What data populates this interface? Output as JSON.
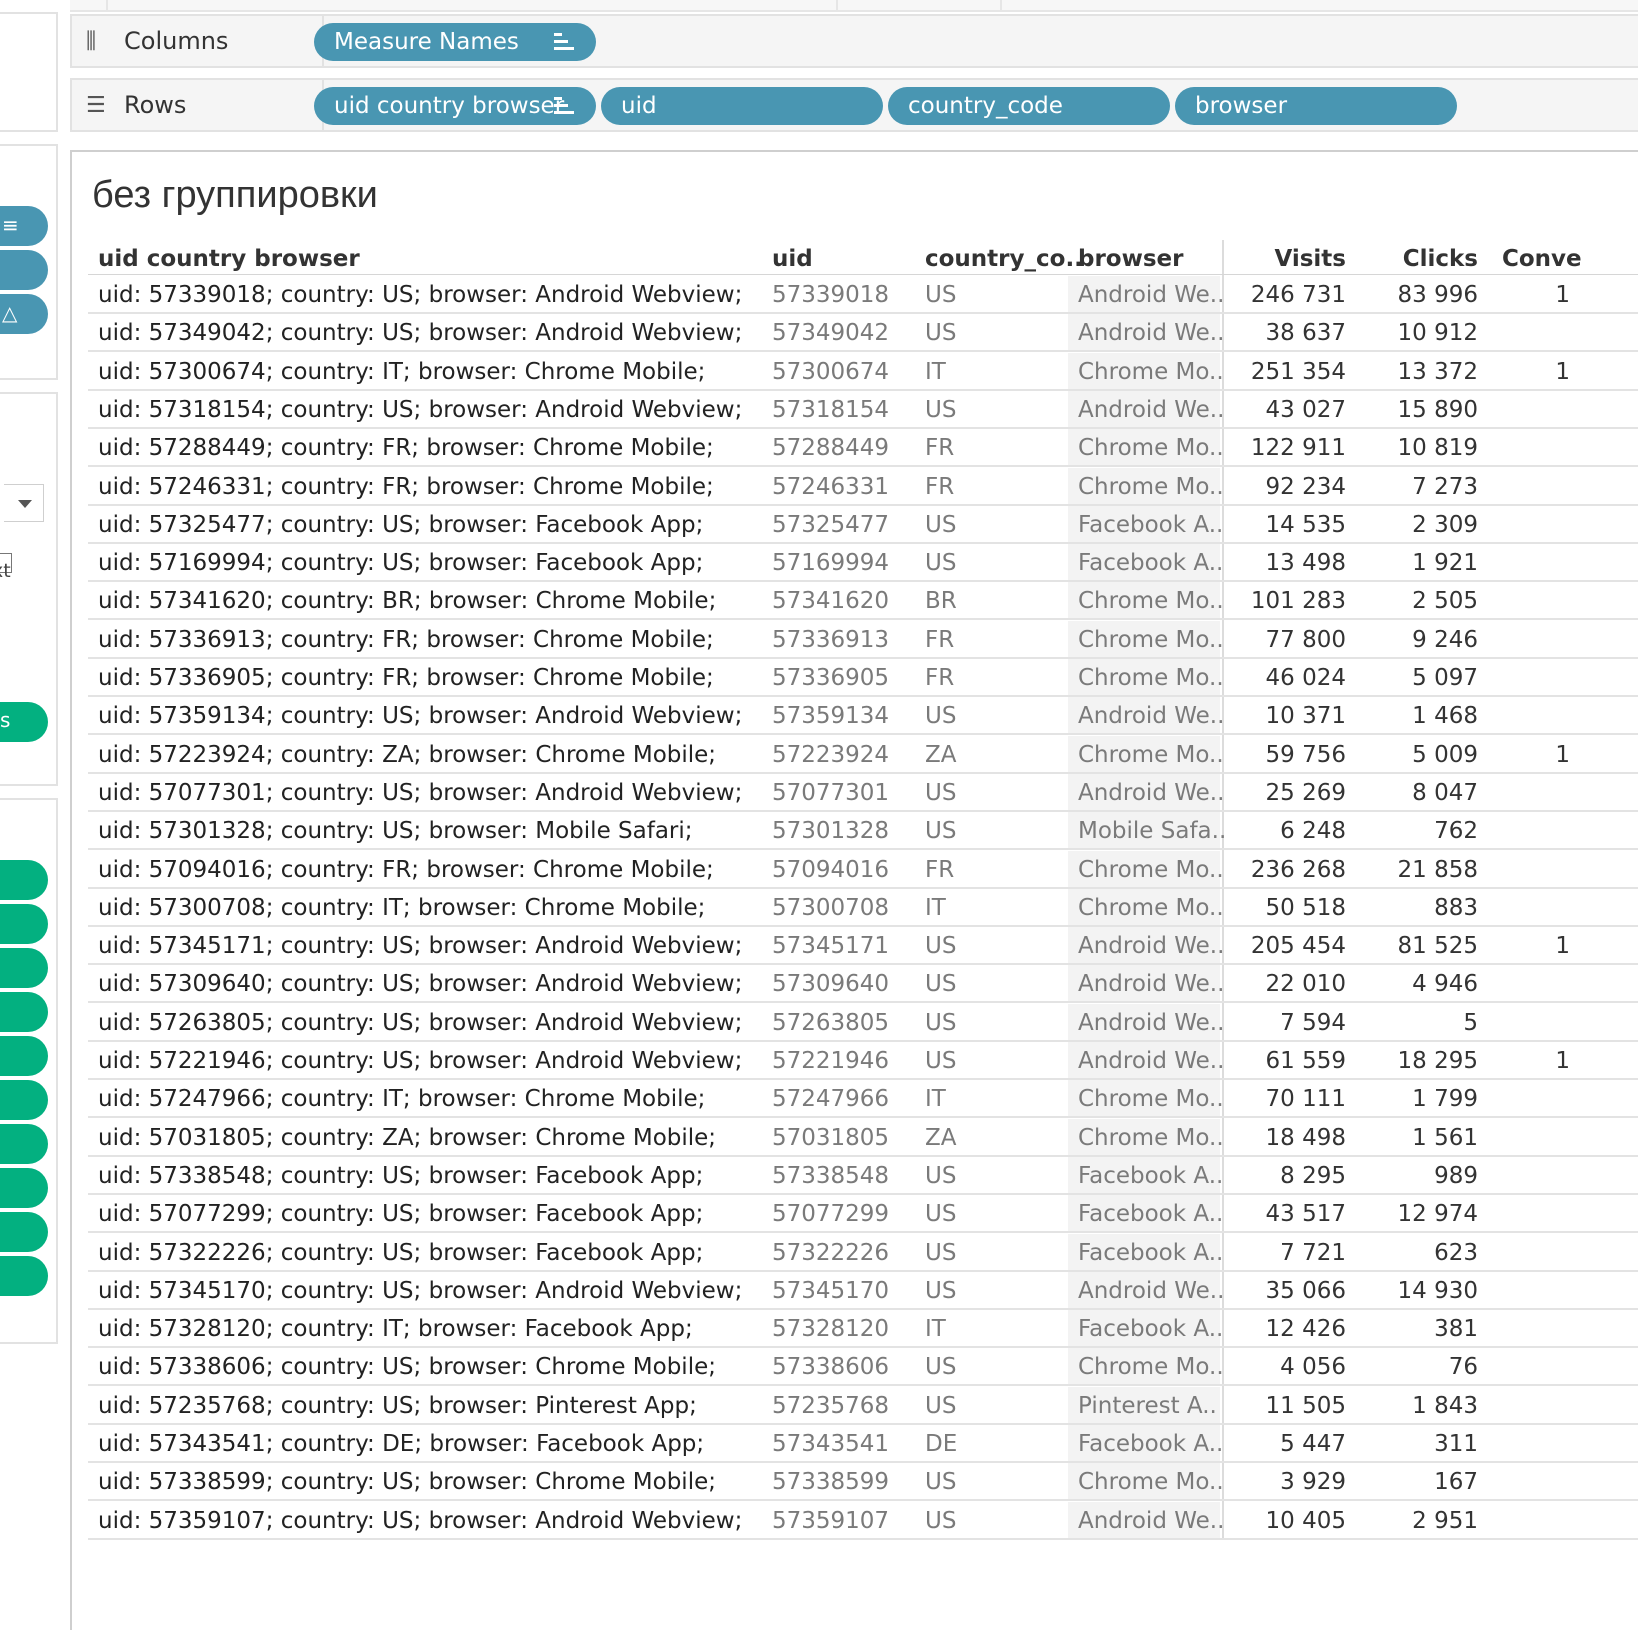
{
  "shelves": {
    "columns": {
      "label": "Columns",
      "pills": [
        {
          "text": "Measure Names"
        }
      ]
    },
    "rows": {
      "label": "Rows",
      "pills": [
        {
          "text": "uid country browser"
        },
        {
          "text": "uid"
        },
        {
          "text": "country_code"
        },
        {
          "text": "browser"
        }
      ]
    }
  },
  "left_panel": {
    "partial_text_1": "xt",
    "partial_text_2": "s"
  },
  "sheet": {
    "title": "без группировки"
  },
  "table": {
    "headers": {
      "label": "uid country browser",
      "uid": "uid",
      "country": "country_co..",
      "browser": "browser",
      "visits": "Visits",
      "clicks": "Clicks",
      "conv": "Conve"
    },
    "rows": [
      {
        "label": "uid: 57339018;  country: US;  browser: Android Webview;",
        "uid": "57339018",
        "cc": "US",
        "br": "Android We..",
        "visits": "246 731",
        "clicks": "83 996",
        "conv": "1"
      },
      {
        "label": "uid: 57349042;  country: US;  browser: Android Webview;",
        "uid": "57349042",
        "cc": "US",
        "br": "Android We..",
        "visits": "38 637",
        "clicks": "10 912",
        "conv": ""
      },
      {
        "label": "uid: 57300674;  country: IT;  browser: Chrome Mobile;",
        "uid": "57300674",
        "cc": "IT",
        "br": "Chrome Mo..",
        "visits": "251 354",
        "clicks": "13 372",
        "conv": "1"
      },
      {
        "label": "uid: 57318154;  country: US;  browser: Android Webview;",
        "uid": "57318154",
        "cc": "US",
        "br": "Android We..",
        "visits": "43 027",
        "clicks": "15 890",
        "conv": ""
      },
      {
        "label": "uid: 57288449;  country: FR;  browser: Chrome Mobile;",
        "uid": "57288449",
        "cc": "FR",
        "br": "Chrome Mo..",
        "visits": "122 911",
        "clicks": "10 819",
        "conv": ""
      },
      {
        "label": "uid: 57246331;  country: FR;  browser: Chrome Mobile;",
        "uid": "57246331",
        "cc": "FR",
        "br": "Chrome Mo..",
        "visits": "92 234",
        "clicks": "7 273",
        "conv": ""
      },
      {
        "label": "uid: 57325477;  country: US;  browser: Facebook App;",
        "uid": "57325477",
        "cc": "US",
        "br": "Facebook A..",
        "visits": "14 535",
        "clicks": "2 309",
        "conv": ""
      },
      {
        "label": "uid: 57169994;  country: US;  browser: Facebook App;",
        "uid": "57169994",
        "cc": "US",
        "br": "Facebook A..",
        "visits": "13 498",
        "clicks": "1 921",
        "conv": ""
      },
      {
        "label": "uid: 57341620;  country: BR;  browser: Chrome Mobile;",
        "uid": "57341620",
        "cc": "BR",
        "br": "Chrome Mo..",
        "visits": "101 283",
        "clicks": "2 505",
        "conv": ""
      },
      {
        "label": "uid: 57336913;  country: FR;  browser: Chrome Mobile;",
        "uid": "57336913",
        "cc": "FR",
        "br": "Chrome Mo..",
        "visits": "77 800",
        "clicks": "9 246",
        "conv": ""
      },
      {
        "label": "uid: 57336905;  country: FR;  browser: Chrome Mobile;",
        "uid": "57336905",
        "cc": "FR",
        "br": "Chrome Mo..",
        "visits": "46 024",
        "clicks": "5 097",
        "conv": ""
      },
      {
        "label": "uid: 57359134;  country: US;  browser: Android Webview;",
        "uid": "57359134",
        "cc": "US",
        "br": "Android We..",
        "visits": "10 371",
        "clicks": "1 468",
        "conv": ""
      },
      {
        "label": "uid: 57223924;  country: ZA;  browser: Chrome Mobile;",
        "uid": "57223924",
        "cc": "ZA",
        "br": "Chrome Mo..",
        "visits": "59 756",
        "clicks": "5 009",
        "conv": "1"
      },
      {
        "label": "uid: 57077301;  country: US;  browser: Android Webview;",
        "uid": "57077301",
        "cc": "US",
        "br": "Android We..",
        "visits": "25 269",
        "clicks": "8 047",
        "conv": ""
      },
      {
        "label": "uid: 57301328;  country: US;  browser: Mobile Safari;",
        "uid": "57301328",
        "cc": "US",
        "br": "Mobile Safa..",
        "visits": "6 248",
        "clicks": "762",
        "conv": ""
      },
      {
        "label": "uid: 57094016;  country: FR;  browser: Chrome Mobile;",
        "uid": "57094016",
        "cc": "FR",
        "br": "Chrome Mo..",
        "visits": "236 268",
        "clicks": "21 858",
        "conv": ""
      },
      {
        "label": "uid: 57300708;  country: IT;  browser: Chrome Mobile;",
        "uid": "57300708",
        "cc": "IT",
        "br": "Chrome Mo..",
        "visits": "50 518",
        "clicks": "883",
        "conv": ""
      },
      {
        "label": "uid: 57345171;  country: US;  browser: Android Webview;",
        "uid": "57345171",
        "cc": "US",
        "br": "Android We..",
        "visits": "205 454",
        "clicks": "81 525",
        "conv": "1"
      },
      {
        "label": "uid: 57309640;  country: US;  browser: Android Webview;",
        "uid": "57309640",
        "cc": "US",
        "br": "Android We..",
        "visits": "22 010",
        "clicks": "4 946",
        "conv": ""
      },
      {
        "label": "uid: 57263805;  country: US;  browser: Android Webview;",
        "uid": "57263805",
        "cc": "US",
        "br": "Android We..",
        "visits": "7 594",
        "clicks": "5",
        "conv": ""
      },
      {
        "label": "uid: 57221946;  country: US;  browser: Android Webview;",
        "uid": "57221946",
        "cc": "US",
        "br": "Android We..",
        "visits": "61 559",
        "clicks": "18 295",
        "conv": "1"
      },
      {
        "label": "uid: 57247966;  country: IT;  browser: Chrome Mobile;",
        "uid": "57247966",
        "cc": "IT",
        "br": "Chrome Mo..",
        "visits": "70 111",
        "clicks": "1 799",
        "conv": ""
      },
      {
        "label": "uid: 57031805;  country: ZA;  browser: Chrome Mobile;",
        "uid": "57031805",
        "cc": "ZA",
        "br": "Chrome Mo..",
        "visits": "18 498",
        "clicks": "1 561",
        "conv": ""
      },
      {
        "label": "uid: 57338548;  country: US;  browser: Facebook App;",
        "uid": "57338548",
        "cc": "US",
        "br": "Facebook A..",
        "visits": "8 295",
        "clicks": "989",
        "conv": ""
      },
      {
        "label": "uid: 57077299;  country: US;  browser: Facebook App;",
        "uid": "57077299",
        "cc": "US",
        "br": "Facebook A..",
        "visits": "43 517",
        "clicks": "12 974",
        "conv": ""
      },
      {
        "label": "uid: 57322226;  country: US;  browser: Facebook App;",
        "uid": "57322226",
        "cc": "US",
        "br": "Facebook A..",
        "visits": "7 721",
        "clicks": "623",
        "conv": ""
      },
      {
        "label": "uid: 57345170;  country: US;  browser: Android Webview;",
        "uid": "57345170",
        "cc": "US",
        "br": "Android We..",
        "visits": "35 066",
        "clicks": "14 930",
        "conv": ""
      },
      {
        "label": "uid: 57328120;  country: IT;  browser: Facebook App;",
        "uid": "57328120",
        "cc": "IT",
        "br": "Facebook A..",
        "visits": "12 426",
        "clicks": "381",
        "conv": ""
      },
      {
        "label": "uid: 57338606;  country: US;  browser: Chrome Mobile;",
        "uid": "57338606",
        "cc": "US",
        "br": "Chrome Mo..",
        "visits": "4 056",
        "clicks": "76",
        "conv": ""
      },
      {
        "label": "uid: 57235768;  country: US;  browser: Pinterest App;",
        "uid": "57235768",
        "cc": "US",
        "br": "Pinterest A..",
        "visits": "11 505",
        "clicks": "1 843",
        "conv": ""
      },
      {
        "label": "uid: 57343541;  country: DE;  browser: Facebook App;",
        "uid": "57343541",
        "cc": "DE",
        "br": "Facebook A..",
        "visits": "5 447",
        "clicks": "311",
        "conv": ""
      },
      {
        "label": "uid: 57338599;  country: US;  browser: Chrome Mobile;",
        "uid": "57338599",
        "cc": "US",
        "br": "Chrome Mo..",
        "visits": "3 929",
        "clicks": "167",
        "conv": ""
      },
      {
        "label": "uid: 57359107;  country: US;  browser: Android Webview;",
        "uid": "57359107",
        "cc": "US",
        "br": "Android We..",
        "visits": "10 405",
        "clicks": "2 951",
        "conv": ""
      }
    ]
  }
}
